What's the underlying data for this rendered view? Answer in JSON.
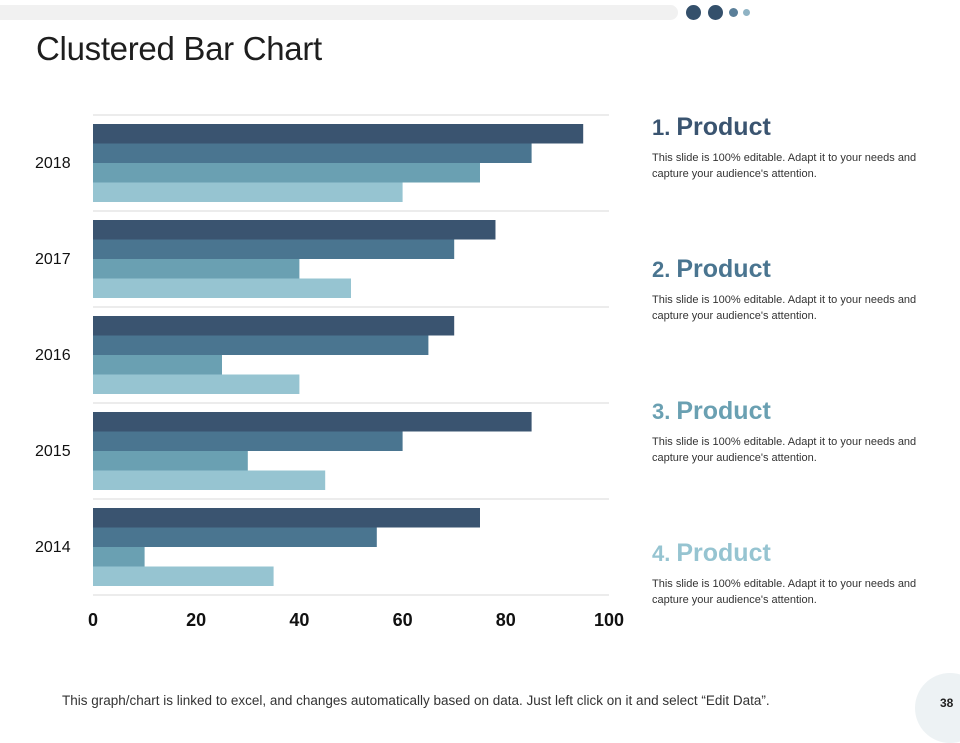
{
  "slide": {
    "title": "Clustered Bar Chart",
    "page_number": "38",
    "footnote": "This graph/chart is linked to excel, and changes automatically  based on data. Just left click on it and select “Edit Data”."
  },
  "legend": [
    {
      "number": "1.",
      "label": "Product",
      "color": "#3a5470",
      "text": "This slide is 100% editable. Adapt it to your needs and capture your audience's attention."
    },
    {
      "number": "2.",
      "label": "Product",
      "color": "#4a7590",
      "text": "This slide is 100% editable. Adapt it to your needs and capture your audience's attention."
    },
    {
      "number": "3.",
      "label": "Product",
      "color": "#6aa0b2",
      "text": "This slide is 100% editable. Adapt it to your needs and capture your audience's attention."
    },
    {
      "number": "4.",
      "label": "Product",
      "color": "#96c4d1",
      "text": "This slide is 100% editable. Adapt it to your needs and capture your audience's attention."
    }
  ],
  "chart_data": {
    "type": "bar",
    "orientation": "horizontal",
    "title": "Clustered Bar Chart",
    "categories": [
      "2018",
      "2017",
      "2016",
      "2015",
      "2014"
    ],
    "series": [
      {
        "name": "Product 1",
        "color": "#3a5470",
        "values": [
          95,
          78,
          70,
          85,
          75
        ]
      },
      {
        "name": "Product 2",
        "color": "#4a7590",
        "values": [
          85,
          70,
          65,
          60,
          55
        ]
      },
      {
        "name": "Product 3",
        "color": "#6aa0b2",
        "values": [
          75,
          40,
          25,
          30,
          10
        ]
      },
      {
        "name": "Product 4",
        "color": "#96c4d1",
        "values": [
          60,
          50,
          40,
          45,
          35
        ]
      }
    ],
    "xlim": [
      0,
      100
    ],
    "xticks": [
      "0",
      "20",
      "40",
      "60",
      "80",
      "100"
    ],
    "grid": true,
    "xlabel": "",
    "ylabel": ""
  },
  "decor": {
    "dot_colors": [
      "#34506b",
      "#34506b",
      "#5a7f99",
      "#8fb3c4"
    ]
  }
}
